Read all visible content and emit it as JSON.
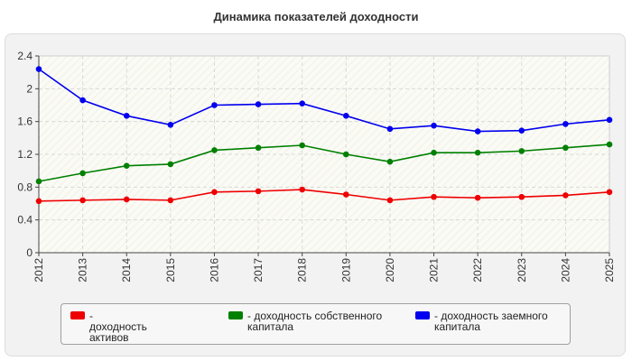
{
  "title": "Динамика показателей доходности",
  "chart_data": {
    "type": "line",
    "x": [
      "2012",
      "2013",
      "2014",
      "2015",
      "2016",
      "2017",
      "2018",
      "2019",
      "2020",
      "2021",
      "2022",
      "2023",
      "2024",
      "2025"
    ],
    "ylim": [
      0,
      2.4
    ],
    "yticks": [
      "0",
      "0.4",
      "0.8",
      "1.2",
      "1.6",
      "2",
      "2.4"
    ],
    "ytick_values": [
      0,
      0.4,
      0.8,
      1.2,
      1.6,
      2.0,
      2.4
    ],
    "grid": true,
    "legend_position": "bottom",
    "series": [
      {
        "name": "- доходность активов",
        "color": "#ee0000",
        "values": [
          0.63,
          0.64,
          0.65,
          0.64,
          0.74,
          0.75,
          0.77,
          0.71,
          0.64,
          0.68,
          0.67,
          0.68,
          0.7,
          0.74
        ]
      },
      {
        "name": "- доходность собственного капитала",
        "color": "#008000",
        "values": [
          0.87,
          0.97,
          1.06,
          1.08,
          1.25,
          1.28,
          1.31,
          1.2,
          1.11,
          1.22,
          1.22,
          1.24,
          1.28,
          1.32
        ]
      },
      {
        "name": "- доходность заемного капитала",
        "color": "#0000ee",
        "values": [
          2.24,
          1.86,
          1.67,
          1.56,
          1.8,
          1.81,
          1.82,
          1.67,
          1.51,
          1.55,
          1.48,
          1.49,
          1.57,
          1.62
        ]
      }
    ]
  }
}
